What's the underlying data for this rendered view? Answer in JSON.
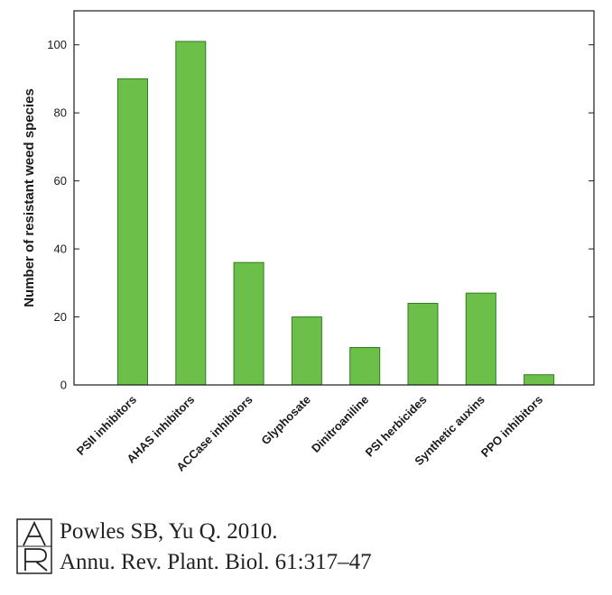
{
  "chart_data": {
    "type": "bar",
    "categories": [
      "PSII inhibitors",
      "AHAS inhibitors",
      "ACCase inhibitors",
      "Glyphosate",
      "Dinitroaniline",
      "PSI herbicides",
      "Synthetic auxins",
      "PPO inhibitors"
    ],
    "values": [
      90,
      101,
      36,
      20,
      11,
      24,
      27,
      3
    ],
    "title": "",
    "xlabel": "",
    "ylabel": "Number of resistant weed species",
    "ylim": [
      0,
      110
    ],
    "yticks": [
      0,
      20,
      40,
      60,
      80,
      100
    ],
    "grid": false,
    "bar_color": "#6cc04a",
    "bar_edge_color": "#2e7d1e"
  },
  "citation": {
    "logo_text": "AR",
    "line1": "Powles SB, Yu Q. 2010.",
    "line2": "Annu. Rev. Plant. Biol. 61:317–47"
  }
}
